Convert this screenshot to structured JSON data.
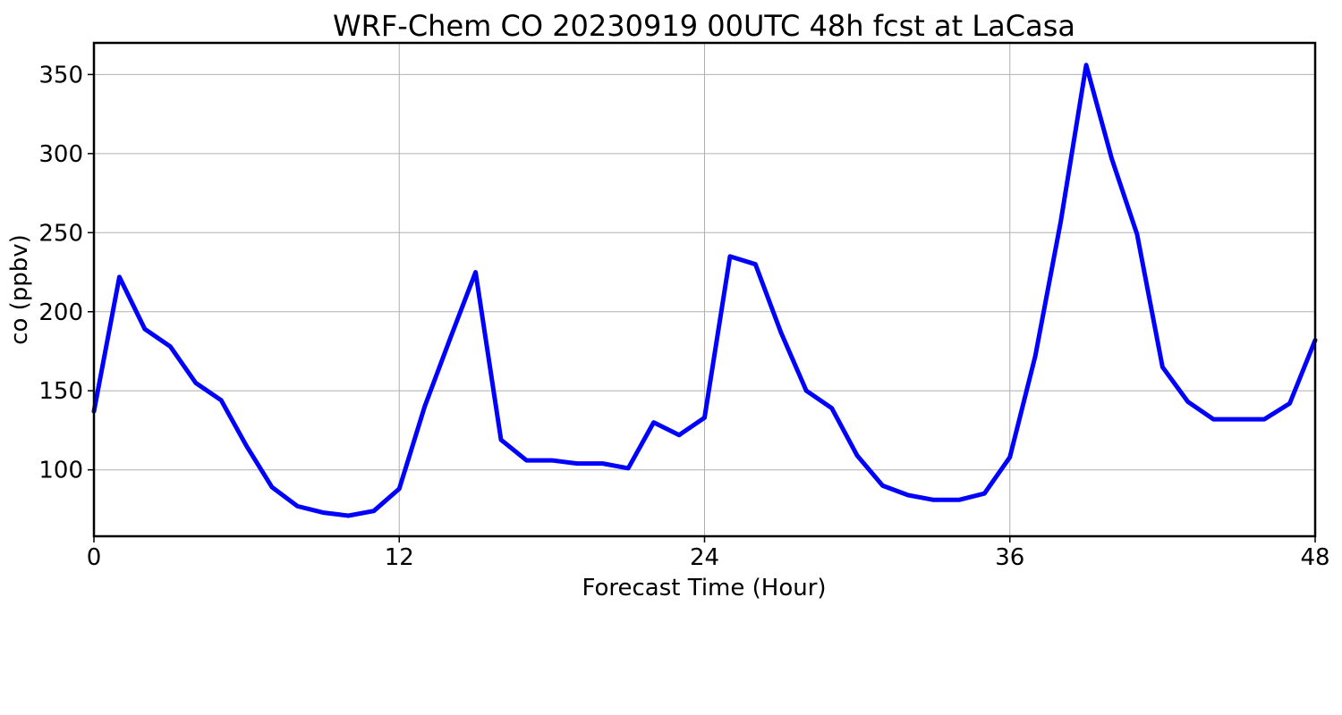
{
  "chart_data": {
    "type": "line",
    "title": "WRF-Chem CO  20230919 00UTC 48h fcst at LaCasa",
    "xlabel": "Forecast Time (Hour)",
    "ylabel": "co  (ppbv)",
    "xlim": [
      0,
      48
    ],
    "ylim": [
      58,
      370
    ],
    "xticks": [
      0,
      12,
      24,
      36,
      48
    ],
    "yticks": [
      100,
      150,
      200,
      250,
      300,
      350
    ],
    "grid": true,
    "series": [
      {
        "color": "#0000ff",
        "x": [
          0,
          1,
          2,
          3,
          4,
          5,
          6,
          7,
          8,
          9,
          10,
          11,
          12,
          13,
          14,
          15,
          16,
          17,
          18,
          19,
          20,
          21,
          22,
          23,
          24,
          25,
          26,
          27,
          28,
          29,
          30,
          31,
          32,
          33,
          34,
          35,
          36,
          37,
          38,
          39,
          40,
          41,
          42,
          43,
          44,
          45,
          46,
          47,
          48
        ],
        "y": [
          137,
          222,
          189,
          178,
          155,
          144,
          115,
          89,
          77,
          73,
          71,
          74,
          88,
          140,
          183,
          225,
          119,
          106,
          106,
          104,
          104,
          101,
          130,
          122,
          133,
          235,
          230,
          187,
          150,
          139,
          109,
          90,
          84,
          81,
          81,
          85,
          108,
          172,
          257,
          356,
          297,
          249,
          165,
          143,
          132,
          132,
          132,
          142,
          182
        ]
      }
    ]
  }
}
